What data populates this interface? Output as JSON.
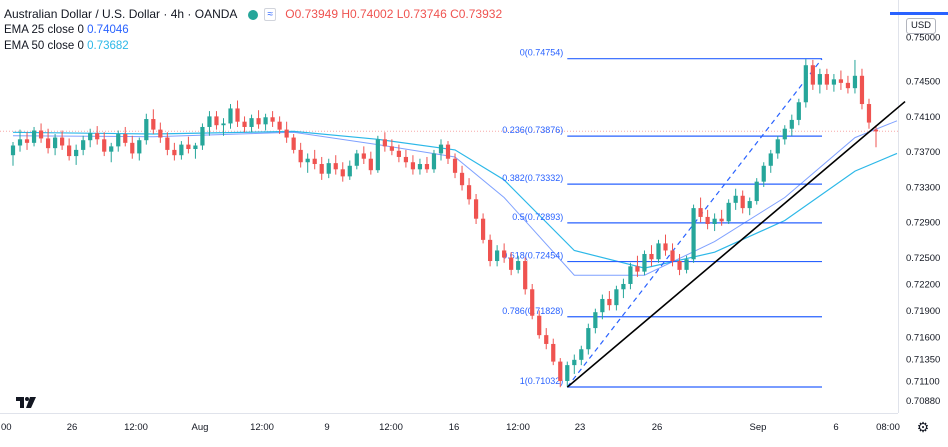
{
  "header": {
    "title": "Australian Dollar / U.S. Dollar · 4h · OANDA",
    "ohlc": "O0.73949 H0.74002 L0.73746 C0.73932",
    "ema25_label": "EMA 25 close 0",
    "ema25_value": "0.74046",
    "ema50_label": "EMA 50 close 0",
    "ema50_value": "0.73682",
    "currency": "USD",
    "wave_icon": "≈"
  },
  "colors": {
    "up": "#26a69a",
    "down": "#ef5350",
    "ema25": "#2962ff",
    "ema50": "#2cb8e8",
    "fib": "#2962ff",
    "trendline": "#000000",
    "price_line": "#f7a8a8"
  },
  "chart_data": {
    "type": "candlestick",
    "symbol": "AUDUSD",
    "timeframe": "4h",
    "y_ticks": [
      "0.75000",
      "0.74500",
      "0.74100",
      "0.73700",
      "0.73300",
      "0.72900",
      "0.72500",
      "0.72200",
      "0.71900",
      "0.71600",
      "0.71350",
      "0.71100",
      "0.70880"
    ],
    "x_ticks": [
      "00",
      "26",
      "12:00",
      "Aug",
      "12:00",
      "9",
      "12:00",
      "16",
      "12:00",
      "23",
      "26",
      "Sep",
      "6",
      "08:00"
    ],
    "last_price": 0.73932,
    "candles": [
      [
        0.7366,
        0.7381,
        0.7354,
        0.7377
      ],
      [
        0.7377,
        0.7395,
        0.737,
        0.7384
      ],
      [
        0.7384,
        0.7392,
        0.7372,
        0.738
      ],
      [
        0.738,
        0.7398,
        0.7376,
        0.7394
      ],
      [
        0.7394,
        0.7402,
        0.738,
        0.7385
      ],
      [
        0.7385,
        0.7396,
        0.7368,
        0.7374
      ],
      [
        0.7374,
        0.739,
        0.7366,
        0.7386
      ],
      [
        0.7386,
        0.7394,
        0.7372,
        0.7377
      ],
      [
        0.7377,
        0.7385,
        0.736,
        0.7365
      ],
      [
        0.7365,
        0.7378,
        0.7355,
        0.7372
      ],
      [
        0.7372,
        0.7388,
        0.7366,
        0.7383
      ],
      [
        0.7383,
        0.7396,
        0.7375,
        0.7391
      ],
      [
        0.7391,
        0.7399,
        0.7378,
        0.7384
      ],
      [
        0.7384,
        0.7392,
        0.7365,
        0.737
      ],
      [
        0.737,
        0.738,
        0.7358,
        0.7376
      ],
      [
        0.7376,
        0.7394,
        0.737,
        0.739
      ],
      [
        0.739,
        0.7398,
        0.7376,
        0.738
      ],
      [
        0.738,
        0.7388,
        0.7362,
        0.7368
      ],
      [
        0.7368,
        0.7386,
        0.736,
        0.7383
      ],
      [
        0.7383,
        0.7413,
        0.7378,
        0.7407
      ],
      [
        0.7407,
        0.7418,
        0.739,
        0.7395
      ],
      [
        0.7395,
        0.7403,
        0.738,
        0.7386
      ],
      [
        0.7386,
        0.7392,
        0.7366,
        0.7372
      ],
      [
        0.7372,
        0.738,
        0.736,
        0.7366
      ],
      [
        0.7366,
        0.7382,
        0.7361,
        0.7378
      ],
      [
        0.7378,
        0.7387,
        0.7368,
        0.7373
      ],
      [
        0.7373,
        0.738,
        0.7362,
        0.7377
      ],
      [
        0.7377,
        0.7402,
        0.7372,
        0.7398
      ],
      [
        0.7398,
        0.7416,
        0.7388,
        0.741
      ],
      [
        0.741,
        0.7416,
        0.7395,
        0.74
      ],
      [
        0.74,
        0.7408,
        0.7388,
        0.7402
      ],
      [
        0.7402,
        0.7424,
        0.7396,
        0.7419
      ],
      [
        0.7419,
        0.7428,
        0.7398,
        0.7404
      ],
      [
        0.7404,
        0.741,
        0.7392,
        0.7398
      ],
      [
        0.7398,
        0.7412,
        0.7392,
        0.7408
      ],
      [
        0.7408,
        0.7417,
        0.7396,
        0.7401
      ],
      [
        0.7401,
        0.7413,
        0.7394,
        0.7409
      ],
      [
        0.7409,
        0.7416,
        0.7398,
        0.7404
      ],
      [
        0.7404,
        0.741,
        0.739,
        0.7395
      ],
      [
        0.7395,
        0.7404,
        0.738,
        0.7386
      ],
      [
        0.7386,
        0.739,
        0.7368,
        0.7372
      ],
      [
        0.7372,
        0.738,
        0.7352,
        0.7358
      ],
      [
        0.7358,
        0.7368,
        0.7346,
        0.7362
      ],
      [
        0.7362,
        0.7372,
        0.735,
        0.7356
      ],
      [
        0.7356,
        0.7364,
        0.7338,
        0.7345
      ],
      [
        0.7345,
        0.7362,
        0.734,
        0.7357
      ],
      [
        0.7357,
        0.7366,
        0.7344,
        0.735
      ],
      [
        0.735,
        0.7358,
        0.7336,
        0.7342
      ],
      [
        0.7342,
        0.736,
        0.7338,
        0.7354
      ],
      [
        0.7354,
        0.7372,
        0.735,
        0.7368
      ],
      [
        0.7368,
        0.7376,
        0.7356,
        0.7362
      ],
      [
        0.7362,
        0.737,
        0.7344,
        0.7349
      ],
      [
        0.7349,
        0.7388,
        0.7346,
        0.7384
      ],
      [
        0.7384,
        0.7392,
        0.737,
        0.7376
      ],
      [
        0.7376,
        0.7384,
        0.7366,
        0.7371
      ],
      [
        0.7371,
        0.7378,
        0.7358,
        0.7364
      ],
      [
        0.7364,
        0.7372,
        0.7352,
        0.7358
      ],
      [
        0.7358,
        0.7366,
        0.7344,
        0.735
      ],
      [
        0.735,
        0.7362,
        0.7344,
        0.7356
      ],
      [
        0.7356,
        0.7364,
        0.7346,
        0.735
      ],
      [
        0.735,
        0.7372,
        0.7346,
        0.7368
      ],
      [
        0.7368,
        0.7384,
        0.736,
        0.7378
      ],
      [
        0.7378,
        0.7382,
        0.7356,
        0.7362
      ],
      [
        0.7362,
        0.7368,
        0.734,
        0.7346
      ],
      [
        0.7346,
        0.7354,
        0.7326,
        0.7332
      ],
      [
        0.7332,
        0.734,
        0.731,
        0.7316
      ],
      [
        0.7316,
        0.7322,
        0.7288,
        0.7294
      ],
      [
        0.7294,
        0.73,
        0.7266,
        0.727
      ],
      [
        0.727,
        0.7276,
        0.724,
        0.7246
      ],
      [
        0.7246,
        0.7264,
        0.724,
        0.7258
      ],
      [
        0.7258,
        0.7266,
        0.7244,
        0.725
      ],
      [
        0.725,
        0.7256,
        0.723,
        0.7236
      ],
      [
        0.7236,
        0.7252,
        0.7232,
        0.7246
      ],
      [
        0.7246,
        0.725,
        0.7208,
        0.7214
      ],
      [
        0.7214,
        0.722,
        0.718,
        0.7184
      ],
      [
        0.7184,
        0.719,
        0.7158,
        0.7162
      ],
      [
        0.7162,
        0.717,
        0.7146,
        0.7152
      ],
      [
        0.7152,
        0.7158,
        0.7128,
        0.7132
      ],
      [
        0.7132,
        0.7136,
        0.7103,
        0.711
      ],
      [
        0.711,
        0.7132,
        0.7104,
        0.7128
      ],
      [
        0.7128,
        0.714,
        0.7118,
        0.7134
      ],
      [
        0.7134,
        0.715,
        0.7128,
        0.7146
      ],
      [
        0.7146,
        0.7175,
        0.714,
        0.717
      ],
      [
        0.717,
        0.7192,
        0.7164,
        0.7188
      ],
      [
        0.7188,
        0.7208,
        0.718,
        0.7203
      ],
      [
        0.7203,
        0.7212,
        0.719,
        0.7196
      ],
      [
        0.7196,
        0.7218,
        0.719,
        0.7214
      ],
      [
        0.7214,
        0.7226,
        0.7204,
        0.722
      ],
      [
        0.722,
        0.7244,
        0.7214,
        0.724
      ],
      [
        0.724,
        0.7252,
        0.7228,
        0.7234
      ],
      [
        0.7234,
        0.7258,
        0.723,
        0.7254
      ],
      [
        0.7254,
        0.7264,
        0.724,
        0.7248
      ],
      [
        0.7248,
        0.727,
        0.7244,
        0.7266
      ],
      [
        0.7266,
        0.7276,
        0.7252,
        0.7258
      ],
      [
        0.7258,
        0.7266,
        0.724,
        0.7246
      ],
      [
        0.7246,
        0.7254,
        0.723,
        0.7236
      ],
      [
        0.7236,
        0.7252,
        0.7232,
        0.7248
      ],
      [
        0.7248,
        0.731,
        0.7244,
        0.7306
      ],
      [
        0.7306,
        0.7318,
        0.729,
        0.7296
      ],
      [
        0.7296,
        0.7304,
        0.7282,
        0.7288
      ],
      [
        0.7288,
        0.73,
        0.728,
        0.7294
      ],
      [
        0.7294,
        0.7304,
        0.7286,
        0.7291
      ],
      [
        0.7291,
        0.7316,
        0.7288,
        0.7312
      ],
      [
        0.7312,
        0.7328,
        0.7304,
        0.732
      ],
      [
        0.732,
        0.7326,
        0.73,
        0.7306
      ],
      [
        0.7306,
        0.7318,
        0.7298,
        0.7314
      ],
      [
        0.7314,
        0.734,
        0.731,
        0.7336
      ],
      [
        0.7336,
        0.7358,
        0.733,
        0.7354
      ],
      [
        0.7354,
        0.7372,
        0.7346,
        0.7368
      ],
      [
        0.7368,
        0.7388,
        0.7362,
        0.7384
      ],
      [
        0.7384,
        0.74,
        0.7378,
        0.7396
      ],
      [
        0.7396,
        0.7412,
        0.7388,
        0.7406
      ],
      [
        0.7406,
        0.743,
        0.74,
        0.7426
      ],
      [
        0.7426,
        0.7475,
        0.742,
        0.7468
      ],
      [
        0.7468,
        0.7474,
        0.744,
        0.7446
      ],
      [
        0.7446,
        0.7464,
        0.7436,
        0.7458
      ],
      [
        0.7458,
        0.7464,
        0.744,
        0.7446
      ],
      [
        0.7446,
        0.7458,
        0.7438,
        0.7452
      ],
      [
        0.7452,
        0.7462,
        0.744,
        0.7448
      ],
      [
        0.7448,
        0.7456,
        0.7436,
        0.7442
      ],
      [
        0.7442,
        0.7474,
        0.7436,
        0.7456
      ],
      [
        0.7456,
        0.7464,
        0.7418,
        0.7424
      ],
      [
        0.7424,
        0.743,
        0.7396,
        0.7403
      ],
      [
        0.7395,
        0.74,
        0.7375,
        0.7393
      ]
    ],
    "ema25": [
      [
        0,
        0.7388
      ],
      [
        20,
        0.7387
      ],
      [
        40,
        0.7392
      ],
      [
        52,
        0.7378
      ],
      [
        63,
        0.7364
      ],
      [
        70,
        0.7318
      ],
      [
        80,
        0.723
      ],
      [
        90,
        0.723
      ],
      [
        100,
        0.7268
      ],
      [
        110,
        0.7318
      ],
      [
        120,
        0.7386
      ],
      [
        126,
        0.7405
      ]
    ],
    "ema50": [
      [
        0,
        0.7392
      ],
      [
        20,
        0.739
      ],
      [
        40,
        0.7393
      ],
      [
        52,
        0.7384
      ],
      [
        63,
        0.7372
      ],
      [
        70,
        0.7338
      ],
      [
        80,
        0.7258
      ],
      [
        90,
        0.7238
      ],
      [
        100,
        0.7256
      ],
      [
        110,
        0.7292
      ],
      [
        120,
        0.7348
      ],
      [
        126,
        0.7368
      ]
    ],
    "fibonacci": [
      {
        "label": "0(0.74754)",
        "value": 0.74754
      },
      {
        "label": "0.236(0.73876)",
        "value": 0.73876
      },
      {
        "label": "0.382(0.73332)",
        "value": 0.73332
      },
      {
        "label": "0.5(0.72893)",
        "value": 0.72893
      },
      {
        "label": "0.618(0.72454)",
        "value": 0.72454
      },
      {
        "label": "0.786(0.71828)",
        "value": 0.71828
      },
      {
        "label": "1(0.71032)",
        "value": 0.71032
      }
    ],
    "fib_anchor": {
      "start_candle": 79,
      "end_candle": 116,
      "low": 0.71032,
      "high": 0.74754
    },
    "trendline": {
      "from": [
        79,
        0.7103
      ],
      "to": [
        126,
        0.742
      ]
    }
  }
}
